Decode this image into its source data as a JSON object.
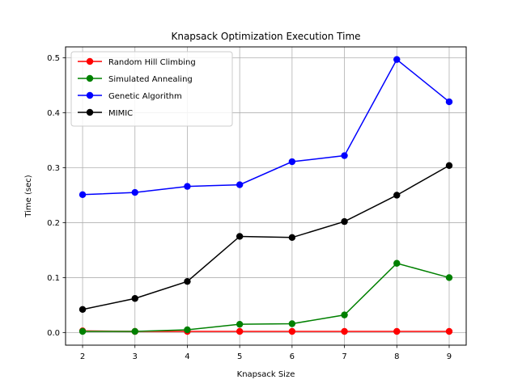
{
  "chart_data": {
    "type": "line",
    "title": "Knapsack Optimization Execution Time",
    "xlabel": "Knapsack Size",
    "ylabel": "Time (sec)",
    "x": [
      2,
      3,
      4,
      5,
      6,
      7,
      8,
      9
    ],
    "xlim": [
      1.675,
      9.325
    ],
    "ylim": [
      -0.023,
      0.52
    ],
    "xticks": [
      "2",
      "3",
      "4",
      "5",
      "6",
      "7",
      "8",
      "9"
    ],
    "yticks": [
      "0.0",
      "0.1",
      "0.2",
      "0.3",
      "0.4",
      "0.5"
    ],
    "grid": true,
    "legend_position": "top-left",
    "series": [
      {
        "name": "Random Hill Climbing",
        "color": "#ff0000",
        "values": [
          0.003,
          0.002,
          0.002,
          0.002,
          0.002,
          0.002,
          0.002,
          0.002
        ]
      },
      {
        "name": "Simulated Annealing",
        "color": "#008000",
        "values": [
          0.002,
          0.002,
          0.005,
          0.015,
          0.016,
          0.032,
          0.126,
          0.1
        ]
      },
      {
        "name": "Genetic Algorithm",
        "color": "#0000ff",
        "values": [
          0.251,
          0.255,
          0.266,
          0.269,
          0.311,
          0.322,
          0.497,
          0.42
        ]
      },
      {
        "name": "MIMIC",
        "color": "#000000",
        "values": [
          0.042,
          0.062,
          0.093,
          0.175,
          0.173,
          0.202,
          0.25,
          0.304
        ]
      }
    ]
  }
}
